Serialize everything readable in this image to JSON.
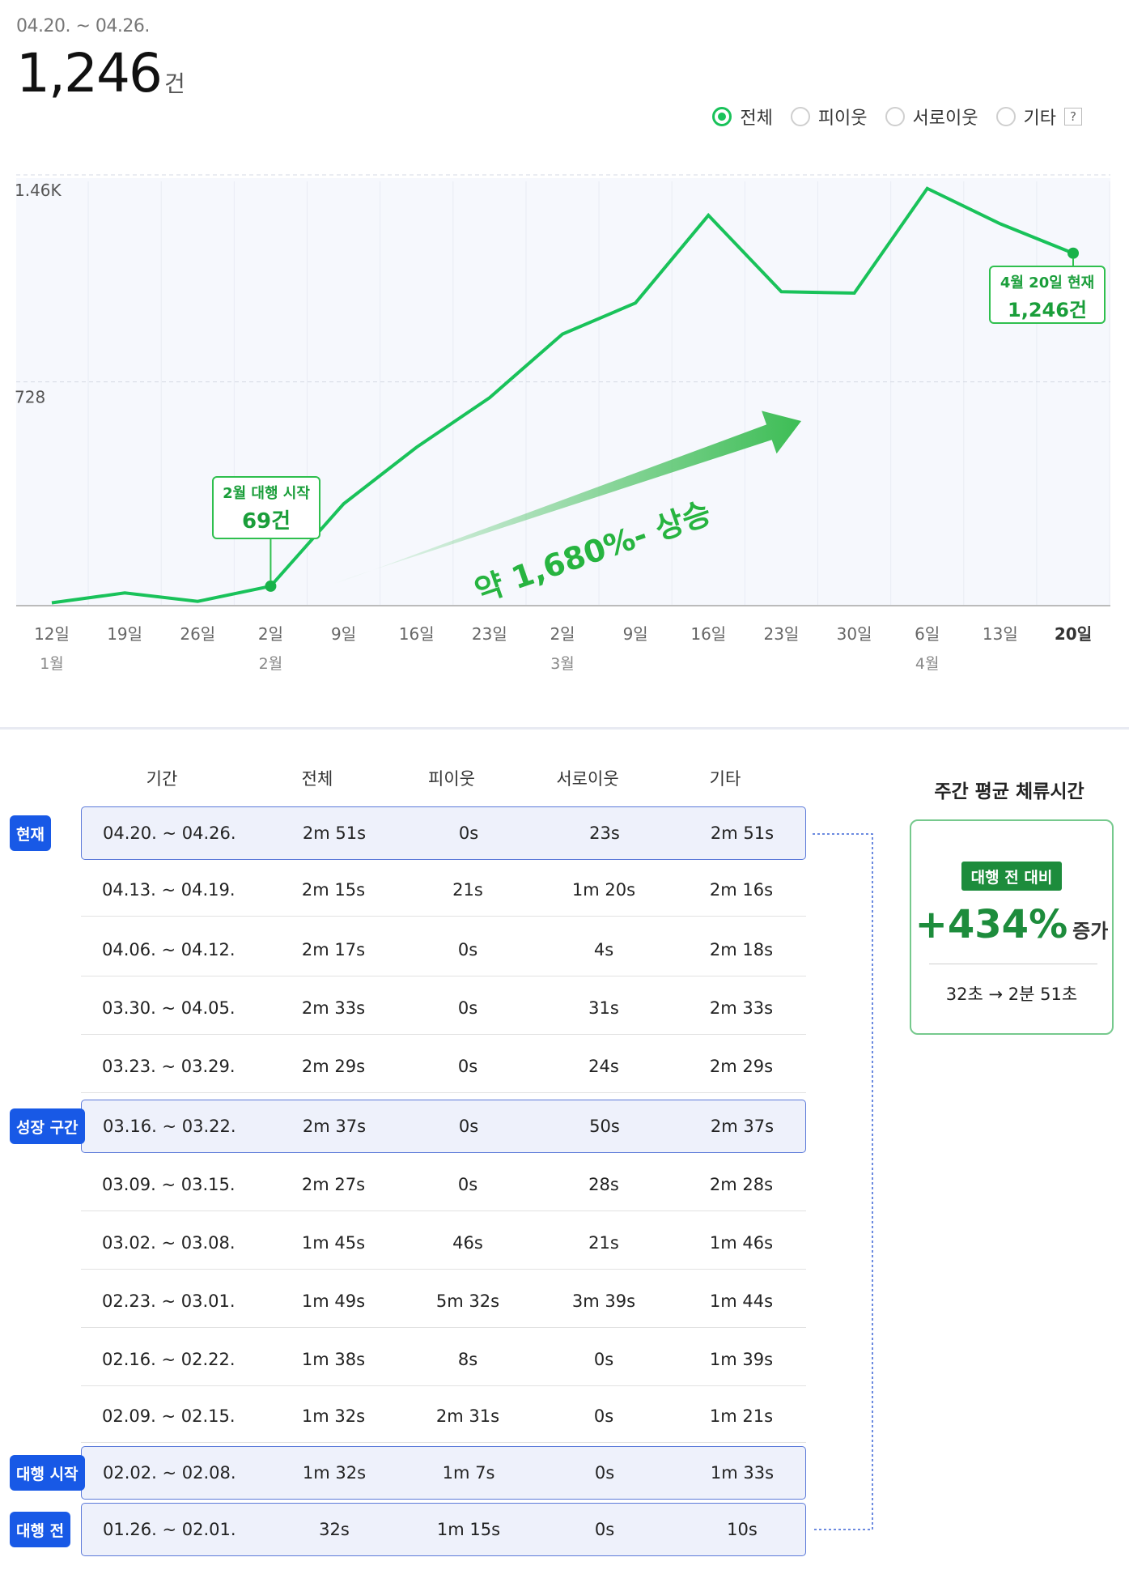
{
  "header": {
    "date_range": "04.20. ~ 04.26.",
    "total": "1,246",
    "total_unit": "건"
  },
  "filters": {
    "options": [
      "전체",
      "피이웃",
      "서로이웃",
      "기타"
    ],
    "selected": "전체",
    "help": "?"
  },
  "colors": {
    "line": "#19c25a",
    "highlight_tag": "#1859e6",
    "panel_accent": "#1d8c3c"
  },
  "chart_data": {
    "type": "line",
    "title": "",
    "xlabel": "",
    "ylabel": "",
    "y_ticks": [
      {
        "value": 1460,
        "label": "1.46K"
      },
      {
        "value": 728,
        "label": "728"
      }
    ],
    "ylim": [
      0,
      1500
    ],
    "grid": true,
    "categories": [
      "12일",
      "19일",
      "26일",
      "2일",
      "9일",
      "16일",
      "23일",
      "2일",
      "9일",
      "16일",
      "23일",
      "30일",
      "6일",
      "13일",
      "20일"
    ],
    "months": [
      "1월",
      "",
      "",
      "2월",
      "",
      "",
      "",
      "3월",
      "",
      "",
      "",
      "",
      "4월",
      "",
      ""
    ],
    "series": [
      {
        "values": [
          10,
          45,
          15,
          69,
          360,
          560,
          735,
          960,
          1070,
          1380,
          1110,
          1105,
          1475,
          1350,
          1246
        ]
      }
    ],
    "annotations": {
      "start_label": "2월 대행 시작",
      "start_value": "69건",
      "now_label": "4월 20일 현재",
      "now_value": "1,246건",
      "growth": "약 1,680%- 상승"
    }
  },
  "table": {
    "headers": [
      "기간",
      "전체",
      "피이웃",
      "서로이웃",
      "기타"
    ],
    "rows": [
      {
        "tag": "현재",
        "highlight": true,
        "cells": [
          "04.20. ~ 04.26.",
          "2m 51s",
          "0s",
          "23s",
          "2m 51s"
        ]
      },
      {
        "tag": "",
        "highlight": false,
        "cells": [
          "04.13. ~ 04.19.",
          "2m 15s",
          "21s",
          "1m 20s",
          "2m 16s"
        ]
      },
      {
        "tag": "",
        "highlight": false,
        "cells": [
          "04.06. ~ 04.12.",
          "2m 17s",
          "0s",
          "4s",
          "2m 18s"
        ]
      },
      {
        "tag": "",
        "highlight": false,
        "cells": [
          "03.30. ~ 04.05.",
          "2m 33s",
          "0s",
          "31s",
          "2m 33s"
        ]
      },
      {
        "tag": "",
        "highlight": false,
        "cells": [
          "03.23. ~ 03.29.",
          "2m 29s",
          "0s",
          "24s",
          "2m 29s"
        ]
      },
      {
        "tag": "성장 구간",
        "highlight": true,
        "cells": [
          "03.16. ~ 03.22.",
          "2m 37s",
          "0s",
          "50s",
          "2m 37s"
        ]
      },
      {
        "tag": "",
        "highlight": false,
        "cells": [
          "03.09. ~ 03.15.",
          "2m 27s",
          "0s",
          "28s",
          "2m 28s"
        ]
      },
      {
        "tag": "",
        "highlight": false,
        "cells": [
          "03.02. ~ 03.08.",
          "1m 45s",
          "46s",
          "21s",
          "1m 46s"
        ]
      },
      {
        "tag": "",
        "highlight": false,
        "cells": [
          "02.23. ~ 03.01.",
          "1m 49s",
          "5m 32s",
          "3m 39s",
          "1m 44s"
        ]
      },
      {
        "tag": "",
        "highlight": false,
        "cells": [
          "02.16. ~ 02.22.",
          "1m 38s",
          "8s",
          "0s",
          "1m 39s"
        ]
      },
      {
        "tag": "",
        "highlight": false,
        "cells": [
          "02.09. ~ 02.15.",
          "1m 32s",
          "2m 31s",
          "0s",
          "1m 21s"
        ]
      },
      {
        "tag": "대행 시작",
        "highlight": true,
        "cells": [
          "02.02. ~ 02.08.",
          "1m 32s",
          "1m 7s",
          "0s",
          "1m 33s"
        ]
      },
      {
        "tag": "대행 전",
        "highlight": true,
        "cells": [
          "01.26. ~ 02.01.",
          "32s",
          "1m 15s",
          "0s",
          "10s"
        ]
      }
    ]
  },
  "summary": {
    "title": "주간 평균 체류시간",
    "badge": "대행 전 대비",
    "percent": "+434%",
    "percent_suffix": "증가",
    "compare": "32초 → 2분 51초"
  }
}
